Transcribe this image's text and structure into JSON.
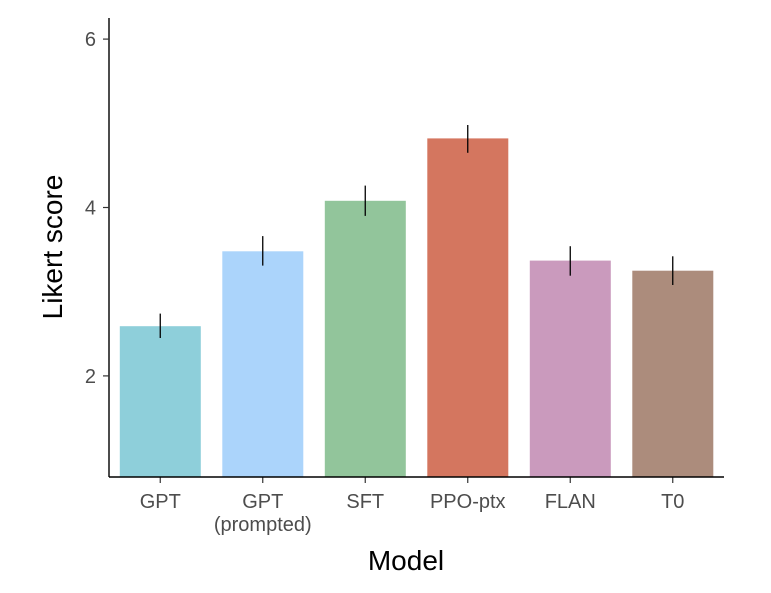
{
  "chart_data": {
    "type": "bar",
    "title": "",
    "xlabel": "Model",
    "ylabel": "Likert score",
    "categories": [
      {
        "line1": "GPT",
        "line2": ""
      },
      {
        "line1": "GPT",
        "line2": "(prompted)"
      },
      {
        "line1": "SFT",
        "line2": ""
      },
      {
        "line1": "PPO-ptx",
        "line2": ""
      },
      {
        "line1": "FLAN",
        "line2": ""
      },
      {
        "line1": "T0",
        "line2": ""
      }
    ],
    "values": [
      2.59,
      3.48,
      4.08,
      4.82,
      3.37,
      3.25
    ],
    "error_low": [
      2.45,
      3.31,
      3.9,
      4.65,
      3.19,
      3.08
    ],
    "error_high": [
      2.74,
      3.66,
      4.26,
      4.98,
      3.54,
      3.42
    ],
    "colors": [
      "#8ecfda",
      "#abd4fb",
      "#92c59b",
      "#d4765f",
      "#ca9abd",
      "#ac8c7c"
    ],
    "ylim": [
      0.8,
      6.25
    ],
    "yticks": [
      2,
      4,
      6
    ],
    "ytick_labels": [
      "2",
      "4",
      "6"
    ],
    "grid": false,
    "legend": "none"
  }
}
